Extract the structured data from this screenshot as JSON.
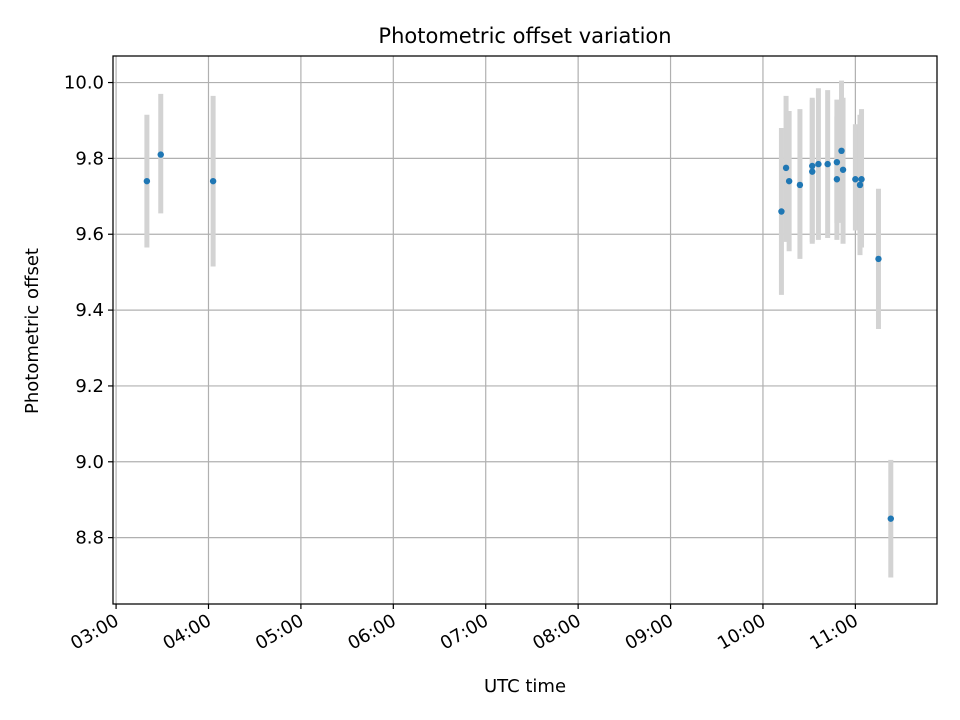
{
  "chart_data": {
    "type": "scatter",
    "title": "Photometric offset variation",
    "xlabel": "UTC time",
    "ylabel": "Photometric offset",
    "x_is_time": true,
    "xlim": [
      "02:58",
      "11:53"
    ],
    "ylim": [
      8.625,
      10.07
    ],
    "x_ticks": [
      "03:00",
      "04:00",
      "05:00",
      "06:00",
      "07:00",
      "08:00",
      "09:00",
      "10:00",
      "11:00"
    ],
    "y_ticks": [
      8.8,
      9.0,
      9.2,
      9.4,
      9.6,
      9.8,
      10.0
    ],
    "y_tick_labels": [
      "8.8",
      "9.0",
      "9.2",
      "9.4",
      "9.6",
      "9.8",
      "10.0"
    ],
    "grid": true,
    "legend": "none",
    "colors": {
      "point": "#1f77b4",
      "errorbar": "#d3d3d3",
      "grid": "#b0b0b0",
      "axes": "#000000"
    },
    "points": [
      {
        "x": "03:20",
        "y": 9.74,
        "y_low": 9.565,
        "y_high": 9.915
      },
      {
        "x": "03:29",
        "y": 9.81,
        "y_low": 9.655,
        "y_high": 9.97
      },
      {
        "x": "04:03",
        "y": 9.74,
        "y_low": 9.515,
        "y_high": 9.965
      },
      {
        "x": "10:12",
        "y": 9.66,
        "y_low": 9.44,
        "y_high": 9.88
      },
      {
        "x": "10:15",
        "y": 9.775,
        "y_low": 9.58,
        "y_high": 9.965
      },
      {
        "x": "10:17",
        "y": 9.74,
        "y_low": 9.555,
        "y_high": 9.925
      },
      {
        "x": "10:24",
        "y": 9.73,
        "y_low": 9.535,
        "y_high": 9.93
      },
      {
        "x": "10:32",
        "y": 9.765,
        "y_low": 9.575,
        "y_high": 9.955
      },
      {
        "x": "10:32",
        "y": 9.78,
        "y_low": 9.58,
        "y_high": 9.96
      },
      {
        "x": "10:36",
        "y": 9.785,
        "y_low": 9.585,
        "y_high": 9.985
      },
      {
        "x": "10:42",
        "y": 9.785,
        "y_low": 9.59,
        "y_high": 9.98
      },
      {
        "x": "10:48",
        "y": 9.79,
        "y_low": 9.585,
        "y_high": 9.955
      },
      {
        "x": "10:48",
        "y": 9.745,
        "y_low": 9.63,
        "y_high": 9.91
      },
      {
        "x": "10:51",
        "y": 9.82,
        "y_low": 9.63,
        "y_high": 10.005
      },
      {
        "x": "10:52",
        "y": 9.77,
        "y_low": 9.575,
        "y_high": 9.96
      },
      {
        "x": "11:00",
        "y": 9.745,
        "y_low": 9.61,
        "y_high": 9.89
      },
      {
        "x": "11:03",
        "y": 9.73,
        "y_low": 9.545,
        "y_high": 9.915
      },
      {
        "x": "11:04",
        "y": 9.745,
        "y_low": 9.565,
        "y_high": 9.93
      },
      {
        "x": "11:15",
        "y": 9.535,
        "y_low": 9.35,
        "y_high": 9.72
      },
      {
        "x": "11:23",
        "y": 8.85,
        "y_low": 8.695,
        "y_high": 9.005
      }
    ]
  }
}
